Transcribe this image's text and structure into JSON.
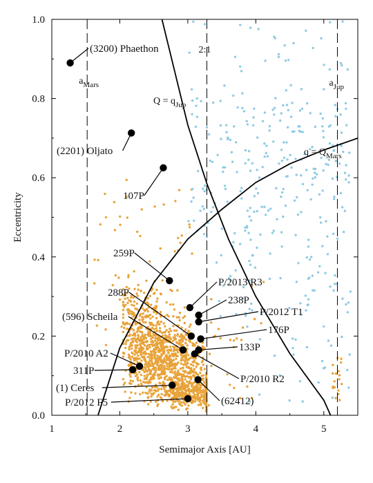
{
  "chart_data": {
    "type": "scatter",
    "xlabel": "Semimajor Axis [AU]",
    "ylabel": "Eccentricity",
    "xlim": [
      1,
      5.5
    ],
    "ylim": [
      0,
      1.0
    ],
    "x_ticks": [
      "1",
      "2",
      "3",
      "4",
      "5"
    ],
    "y_ticks": [
      "0.0",
      "0.2",
      "0.4",
      "0.6",
      "0.8",
      "1.0"
    ],
    "grid": false,
    "colors": {
      "asteroids": "#e8a33a",
      "comets": "#8ecbe3",
      "featured": "#000000",
      "lines": "#000000"
    },
    "series": [
      {
        "name": "asteroids",
        "values": "dense cloud, mostly a 2.1-3.3 AU, e 0-0.35"
      },
      {
        "name": "comets",
        "values": "scattered cloud, mostly a 3.0-5.4 AU, e 0.2-1.0"
      }
    ],
    "vertical_lines": [
      {
        "label_main": "a",
        "label_sub": "Mars",
        "x": 1.52
      },
      {
        "label_main": "2:1",
        "label_sub": "",
        "x": 3.28
      },
      {
        "label_main": "a",
        "label_sub": "Jup",
        "x": 5.2
      }
    ],
    "curves": [
      {
        "label_main": "Q = q",
        "label_sub": "Jup",
        "points": [
          [
            2.62,
            1.0
          ],
          [
            3.0,
            0.733
          ],
          [
            3.28,
            0.585
          ],
          [
            3.6,
            0.444
          ],
          [
            4.0,
            0.3
          ],
          [
            4.5,
            0.156
          ],
          [
            5.0,
            0.038
          ],
          [
            5.1,
            0.0
          ]
        ]
      },
      {
        "label_main": "q = Q",
        "label_sub": "Mars",
        "points": [
          [
            1.68,
            0.0
          ],
          [
            2.0,
            0.17
          ],
          [
            2.5,
            0.335
          ],
          [
            3.0,
            0.445
          ],
          [
            3.5,
            0.52
          ],
          [
            4.0,
            0.588
          ],
          [
            4.5,
            0.635
          ],
          [
            5.0,
            0.67
          ],
          [
            5.5,
            0.7
          ]
        ]
      }
    ],
    "objects": [
      {
        "name": "(3200) Phaethon",
        "x": 1.27,
        "y": 0.89
      },
      {
        "name": "(2201) Oljato",
        "x": 2.17,
        "y": 0.713
      },
      {
        "name": "107P",
        "x": 2.64,
        "y": 0.625
      },
      {
        "name": "259P",
        "x": 2.73,
        "y": 0.34
      },
      {
        "name": "P/2013 R3",
        "x": 3.03,
        "y": 0.272
      },
      {
        "name": "238P",
        "x": 3.16,
        "y": 0.253
      },
      {
        "name": "P/2012 T1",
        "x": 3.16,
        "y": 0.236
      },
      {
        "name": "176P",
        "x": 3.19,
        "y": 0.193
      },
      {
        "name": "288P",
        "x": 3.05,
        "y": 0.2
      },
      {
        "name": "(596) Scheila",
        "x": 2.93,
        "y": 0.165
      },
      {
        "name": "133P",
        "x": 3.16,
        "y": 0.165
      },
      {
        "name": "P/2010 R2",
        "x": 3.1,
        "y": 0.155
      },
      {
        "name": "P/2010 A2",
        "x": 2.29,
        "y": 0.124
      },
      {
        "name": "311P",
        "x": 2.19,
        "y": 0.115
      },
      {
        "name": "(1) Ceres",
        "x": 2.77,
        "y": 0.076
      },
      {
        "name": "(62412)",
        "x": 3.15,
        "y": 0.09
      },
      {
        "name": "P/2012 F5",
        "x": 3.0,
        "y": 0.042
      }
    ]
  }
}
